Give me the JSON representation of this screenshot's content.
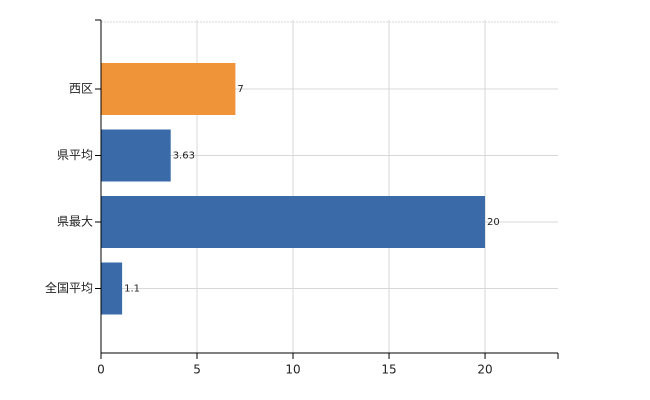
{
  "chart_data": {
    "type": "bar",
    "orientation": "horizontal",
    "categories": [
      "西区",
      "県平均",
      "県最大",
      "全国平均"
    ],
    "values": [
      7,
      3.63,
      20,
      1.1
    ],
    "colors": [
      "#f0943a",
      "#3a6aa8",
      "#3a6aa8",
      "#3a6aa8"
    ],
    "xlim": [
      0,
      23.8
    ],
    "xticks": [
      0,
      5,
      10,
      15,
      20
    ],
    "grid": true
  }
}
